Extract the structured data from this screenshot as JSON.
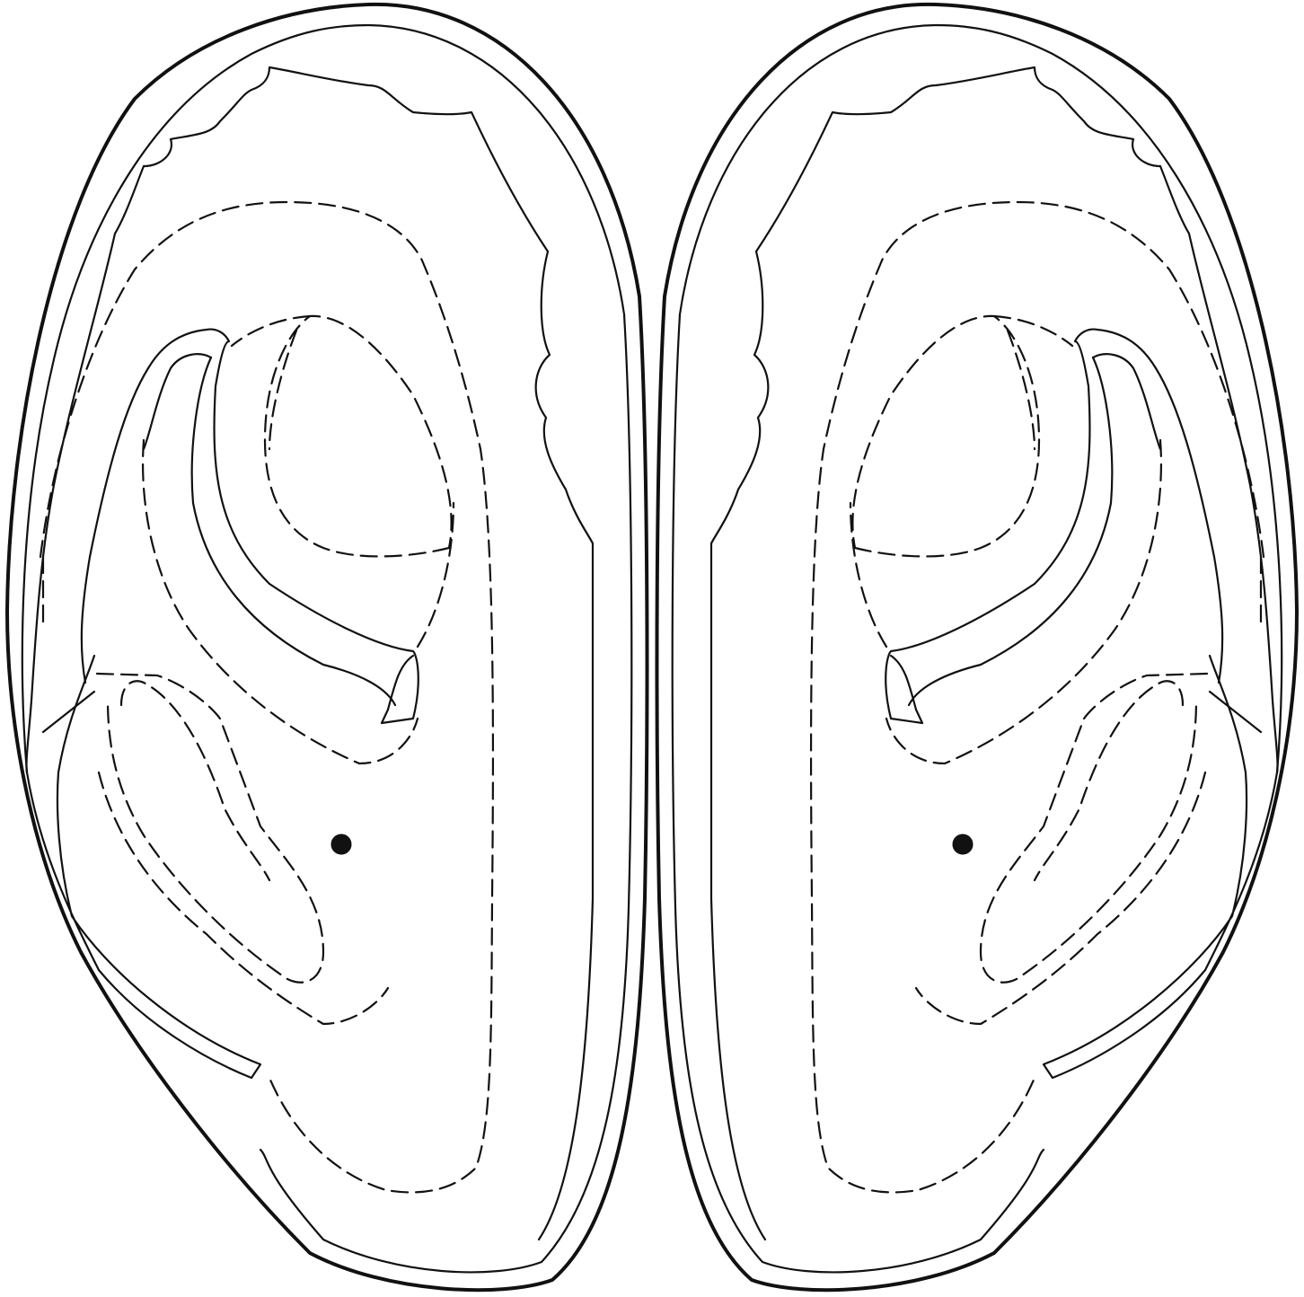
{
  "figure": {
    "views": [
      {
        "id": "left",
        "mirrored": false
      },
      {
        "id": "right",
        "mirrored": true
      }
    ],
    "line_color": "#111111",
    "background": "#ffffff",
    "hidden_line_style": "dashed",
    "visible_line_style": "solid"
  }
}
